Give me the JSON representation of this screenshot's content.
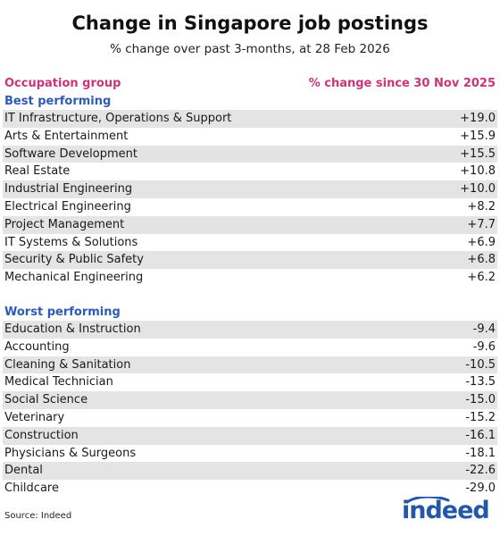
{
  "title": "Change in Singapore job postings",
  "subtitle": "% change over past 3-months, at 28 Feb 2026",
  "source": "Source: Indeed",
  "logo_text": "indeed",
  "colors": {
    "header": "#c8357a",
    "section": "#2d5bb5",
    "row_shade": "#e4e4e4",
    "logo": "#2557a7"
  },
  "chart_data": {
    "type": "table",
    "columns": [
      "Occupation group",
      "% change since 30 Nov 2025"
    ],
    "sections": [
      {
        "label": "Best performing",
        "rows": [
          {
            "name": "IT Infrastructure, Operations & Support",
            "value": "+19.0"
          },
          {
            "name": "Arts & Entertainment",
            "value": "+15.9"
          },
          {
            "name": "Software Development",
            "value": "+15.5"
          },
          {
            "name": "Real Estate",
            "value": "+10.8"
          },
          {
            "name": "Industrial Engineering",
            "value": "+10.0"
          },
          {
            "name": "Electrical Engineering",
            "value": "+8.2"
          },
          {
            "name": "Project Management",
            "value": "+7.7"
          },
          {
            "name": "IT Systems & Solutions",
            "value": "+6.9"
          },
          {
            "name": "Security & Public Safety",
            "value": "+6.8"
          },
          {
            "name": "Mechanical Engineering",
            "value": "+6.2"
          }
        ]
      },
      {
        "label": "Worst performing",
        "rows": [
          {
            "name": "Education & Instruction",
            "value": "-9.4"
          },
          {
            "name": "Accounting",
            "value": "-9.6"
          },
          {
            "name": "Cleaning & Sanitation",
            "value": "-10.5"
          },
          {
            "name": "Medical Technician",
            "value": "-13.5"
          },
          {
            "name": "Social Science",
            "value": "-15.0"
          },
          {
            "name": "Veterinary",
            "value": "-15.2"
          },
          {
            "name": "Construction",
            "value": "-16.1"
          },
          {
            "name": "Physicians & Surgeons",
            "value": "-18.1"
          },
          {
            "name": "Dental",
            "value": "-22.6"
          },
          {
            "name": "Childcare",
            "value": "-29.0"
          }
        ]
      }
    ]
  }
}
